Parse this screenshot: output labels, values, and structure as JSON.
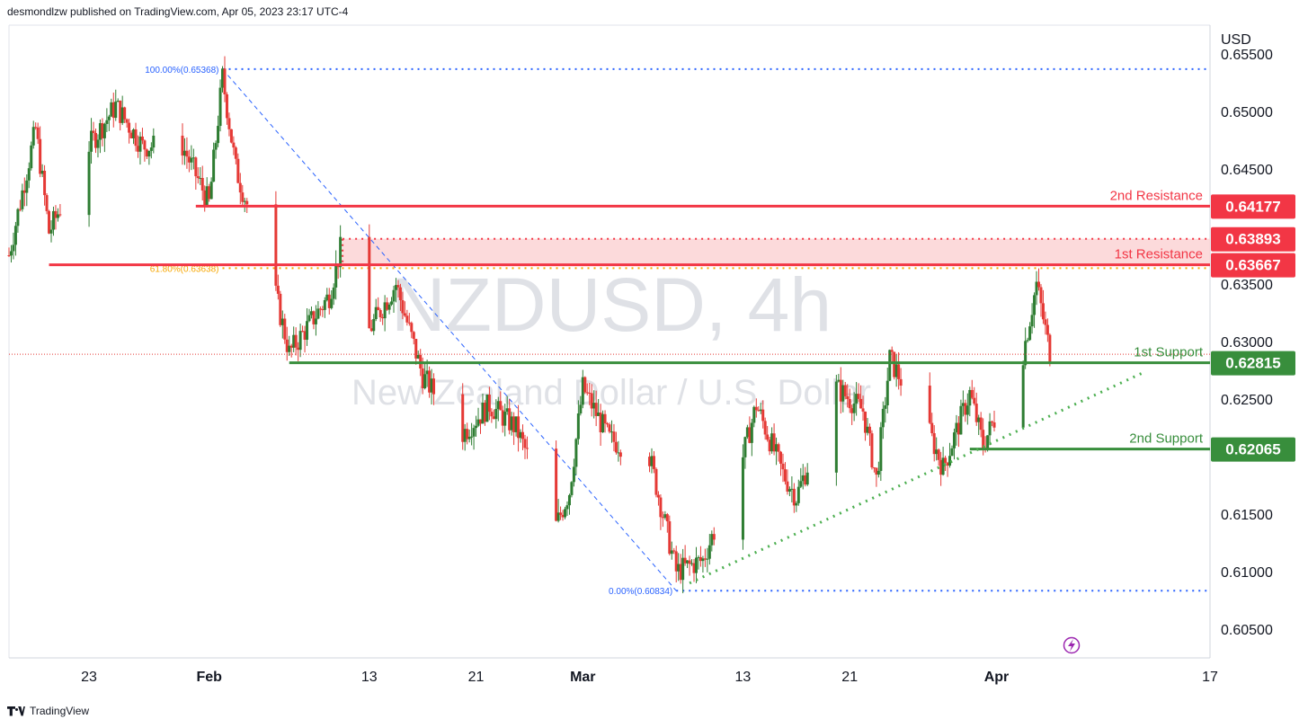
{
  "header": {
    "published": "desmondlzw published on TradingView.com, Apr 05, 2023 23:17 UTC-4"
  },
  "footer": {
    "brand": "TradingView"
  },
  "watermark": {
    "symbol": "NZDUSD, 4h",
    "description": "New Zealand Dollar / U.S. Dollar"
  },
  "colors": {
    "resistance": "#f23645",
    "support": "#388e3c",
    "fib": "#2962ff",
    "fib618": "#f7a600",
    "bull": "#2e7d32",
    "bear": "#e53935",
    "zone": "#fbd3d5"
  },
  "icons": {
    "replay": "lightning-icon"
  },
  "chart_data": {
    "type": "candlestick",
    "symbol": "NZDUSD",
    "timeframe": "4h",
    "currency": "USD",
    "ylim": [
      0.6025,
      0.6575
    ],
    "yticks": [
      "0.65500",
      "0.65000",
      "0.64500",
      "0.63500",
      "0.63000",
      "0.62500",
      "0.61500",
      "0.61000",
      "0.60500"
    ],
    "xticks": [
      {
        "label": "23",
        "date": "2023-01-23"
      },
      {
        "label": "Feb",
        "date": "2023-02-01"
      },
      {
        "label": "13",
        "date": "2023-02-13"
      },
      {
        "label": "21",
        "date": "2023-02-21"
      },
      {
        "label": "Mar",
        "date": "2023-03-01"
      },
      {
        "label": "13",
        "date": "2023-03-13"
      },
      {
        "label": "21",
        "date": "2023-03-21"
      },
      {
        "label": "Apr",
        "date": "2023-04-01"
      },
      {
        "label": "17",
        "date": "2023-04-17"
      }
    ],
    "xlim": [
      "2023-01-17",
      "2023-04-17"
    ],
    "levels": [
      {
        "name": "2nd Resistance",
        "value": 0.64177,
        "label": "0.64177",
        "kind": "resistance"
      },
      {
        "name": "1st Resistance",
        "value": 0.63667,
        "label": "0.63667",
        "kind": "resistance",
        "zone_top": 0.63893,
        "zone_top_label": "0.63893"
      },
      {
        "name": "1st Support",
        "value": 0.62815,
        "label": "0.62815",
        "kind": "support"
      },
      {
        "name": "2nd Support",
        "value": 0.62065,
        "label": "0.62065",
        "kind": "support"
      }
    ],
    "fibonacci": [
      {
        "label": "100.00%(0.65368)",
        "value": 0.65368
      },
      {
        "label": "61.80%(0.63638)",
        "value": 0.63638
      },
      {
        "label": "0.00%(0.60834)",
        "value": 0.60834
      }
    ],
    "trend_points": [
      {
        "date": "2023-01-17",
        "price": 0.6375
      },
      {
        "date": "2023-01-19",
        "price": 0.6485
      },
      {
        "date": "2023-01-20",
        "price": 0.6395
      },
      {
        "date": "2023-01-23",
        "price": 0.647
      },
      {
        "date": "2023-01-25",
        "price": 0.6505
      },
      {
        "date": "2023-01-27",
        "price": 0.647
      },
      {
        "date": "2023-01-30",
        "price": 0.647
      },
      {
        "date": "2023-02-01",
        "price": 0.642
      },
      {
        "date": "2023-02-02",
        "price": 0.653
      },
      {
        "date": "2023-02-03",
        "price": 0.645
      },
      {
        "date": "2023-02-06",
        "price": 0.634
      },
      {
        "date": "2023-02-07",
        "price": 0.629
      },
      {
        "date": "2023-02-10",
        "price": 0.634
      },
      {
        "date": "2023-02-11",
        "price": 0.6388
      },
      {
        "date": "2023-02-13",
        "price": 0.631
      },
      {
        "date": "2023-02-15",
        "price": 0.635
      },
      {
        "date": "2023-02-17",
        "price": 0.627
      },
      {
        "date": "2023-02-20",
        "price": 0.622
      },
      {
        "date": "2023-02-22",
        "price": 0.6245
      },
      {
        "date": "2023-02-24",
        "price": 0.6225
      },
      {
        "date": "2023-02-27",
        "price": 0.614
      },
      {
        "date": "2023-02-28",
        "price": 0.617
      },
      {
        "date": "2023-03-01",
        "price": 0.626
      },
      {
        "date": "2023-03-03",
        "price": 0.6215
      },
      {
        "date": "2023-03-06",
        "price": 0.62
      },
      {
        "date": "2023-03-08",
        "price": 0.61
      },
      {
        "date": "2023-03-10",
        "price": 0.611
      },
      {
        "date": "2023-03-13",
        "price": 0.62
      },
      {
        "date": "2023-03-14",
        "price": 0.6245
      },
      {
        "date": "2023-03-16",
        "price": 0.6185
      },
      {
        "date": "2023-03-17",
        "price": 0.6165
      },
      {
        "date": "2023-03-20",
        "price": 0.626
      },
      {
        "date": "2023-03-22",
        "price": 0.624
      },
      {
        "date": "2023-03-23",
        "price": 0.618
      },
      {
        "date": "2023-03-24",
        "price": 0.6285
      },
      {
        "date": "2023-03-27",
        "price": 0.622
      },
      {
        "date": "2023-03-28",
        "price": 0.619
      },
      {
        "date": "2023-03-30",
        "price": 0.6255
      },
      {
        "date": "2023-03-31",
        "price": 0.621
      },
      {
        "date": "2023-04-03",
        "price": 0.629
      },
      {
        "date": "2023-04-04",
        "price": 0.635
      },
      {
        "date": "2023-04-05",
        "price": 0.629
      }
    ]
  }
}
